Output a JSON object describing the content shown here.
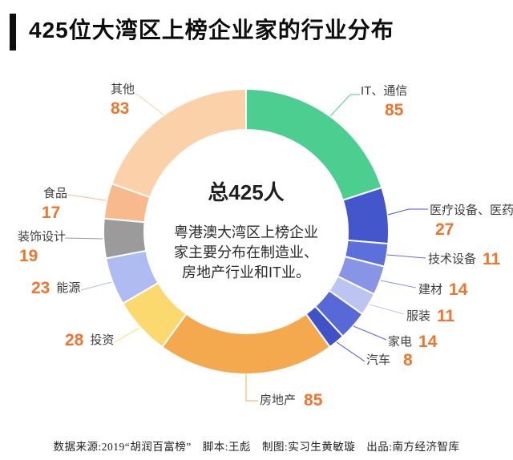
{
  "title": "425位大湾区上榜企业家的行业分布",
  "center": {
    "total": "总425人",
    "description_lines": [
      "粤港澳大湾区上榜企业",
      "家主要分布在制造业、",
      "房地产行业和IT业。"
    ]
  },
  "footer": "数据来源:2019“胡润百富榜”　脚本:王彪　制图:实习生黄敏璇　出品:南方经济智库",
  "colors": {
    "value_number": "#F0742C",
    "label_text": "#3d3d3d",
    "title_text": "#0d0d0d"
  },
  "chart_data": {
    "type": "pie",
    "donut": true,
    "title": "425位大湾区上榜企业家的行业分布",
    "total_label": "总425人",
    "total": 425,
    "unit": "人",
    "start_angle_deg": 0,
    "direction": "clockwise",
    "legend_position": "around",
    "segments": [
      {
        "label": "IT、通信",
        "value": 85,
        "color": "#4CCE90"
      },
      {
        "label": "医疗设备、医药",
        "value": 27,
        "color": "#4456CC"
      },
      {
        "label": "技术设备",
        "value": 11,
        "color": "#5D6FDB"
      },
      {
        "label": "建材",
        "value": 14,
        "color": "#8894E6"
      },
      {
        "label": "服装",
        "value": 11,
        "color": "#BCC5F2"
      },
      {
        "label": "家电",
        "value": 14,
        "color": "#5769D7"
      },
      {
        "label": "汽车",
        "value": 8,
        "color": "#4152C9"
      },
      {
        "label": "房地产",
        "value": 85,
        "color": "#F5A94E"
      },
      {
        "label": "投资",
        "value": 28,
        "color": "#FBD96E"
      },
      {
        "label": "能源",
        "value": 23,
        "color": "#AEBCF1"
      },
      {
        "label": "装饰设计",
        "value": 19,
        "color": "#9B9B9B"
      },
      {
        "label": "食品",
        "value": 17,
        "color": "#F8BA8C"
      },
      {
        "label": "其他",
        "value": 83,
        "color": "#FAD1A8"
      }
    ]
  }
}
